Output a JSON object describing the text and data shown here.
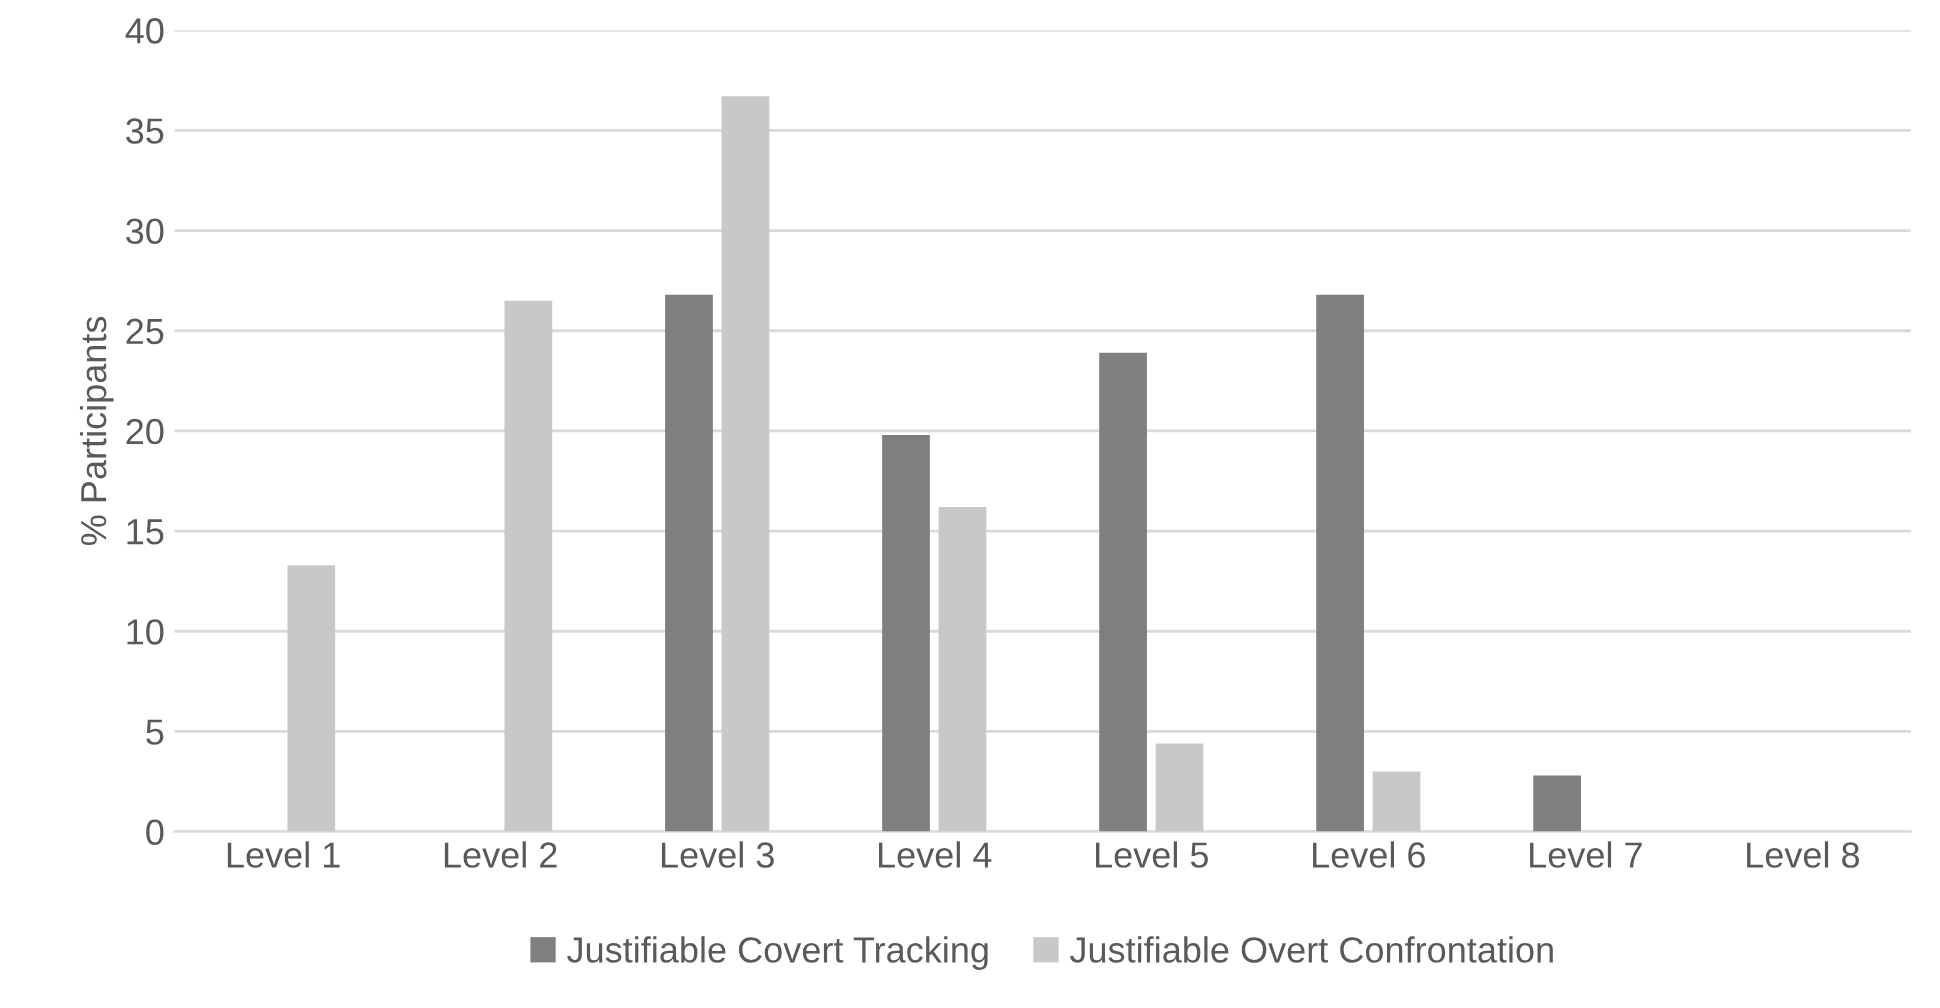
{
  "chart_data": {
    "type": "bar",
    "ylabel": "% Participants",
    "categories": [
      "Level 1",
      "Level 2",
      "Level 3",
      "Level 4",
      "Level 5",
      "Level 6",
      "Level 7",
      "Level 8"
    ],
    "series": [
      {
        "name": "Justifiable Covert Tracking",
        "color": "#7f7f7f",
        "values": [
          0,
          0,
          26.8,
          19.8,
          23.9,
          26.8,
          2.8,
          0
        ]
      },
      {
        "name": "Justifiable Overt Confrontation",
        "color": "#c8c8c8",
        "values": [
          13.3,
          26.5,
          36.7,
          16.2,
          4.4,
          3.0,
          0,
          0
        ]
      }
    ],
    "ylim": [
      0,
      40
    ],
    "yticks": [
      0,
      5,
      10,
      15,
      20,
      25,
      30,
      35,
      40
    ],
    "grid": "y",
    "legend": "bottom"
  }
}
